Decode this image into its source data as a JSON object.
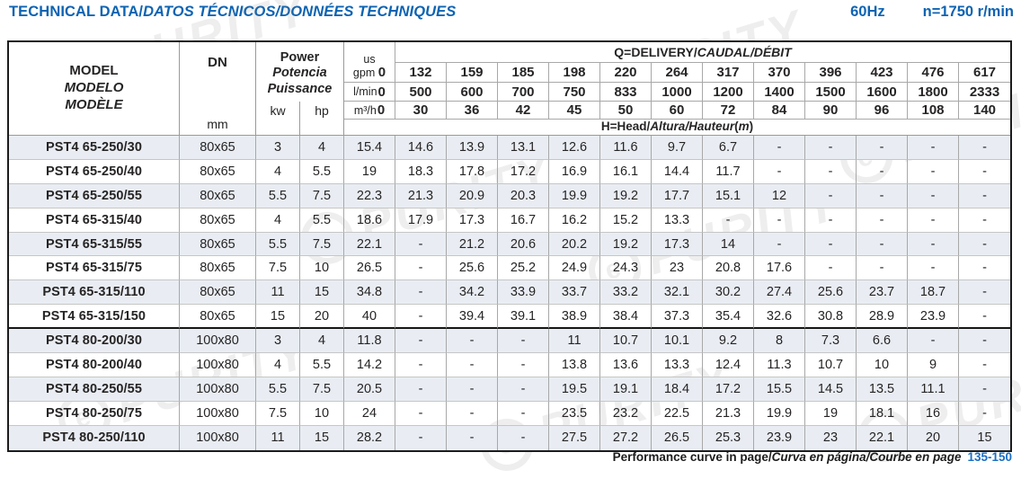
{
  "page": {
    "title_upright": "TECHNICAL DATA/",
    "title_italic": "DATOS TÉCNICOS/DONNÉES TECHNIQUES",
    "frequency": "60Hz",
    "speed": "n=1750 r/min"
  },
  "table": {
    "model_header": {
      "en": "MODEL",
      "es": "MODELO",
      "fr": "MODÈLE"
    },
    "dn_header": {
      "label": "DN",
      "unit": "mm"
    },
    "power_header": {
      "en": "Power",
      "es": "Potencia",
      "fr": "Puissance",
      "kw": "kw",
      "hp": "hp"
    },
    "delivery": {
      "title_bold": "Q=DELIVERY/",
      "title_italic": "CAUDAL/DÉBIT",
      "head_bold": "H=Head/",
      "head_italic": "Altura/Hauteur",
      "head_unit_open": "(",
      "head_unit_m": "m",
      "head_unit_close": ")",
      "unit_rows": [
        {
          "unit_top": "us",
          "unit": "gpm",
          "zero": "0",
          "values": [
            "132",
            "159",
            "185",
            "198",
            "220",
            "264",
            "317",
            "370",
            "396",
            "423",
            "476",
            "617"
          ]
        },
        {
          "unit_top": "",
          "unit": "l/min",
          "zero": "0",
          "values": [
            "500",
            "600",
            "700",
            "750",
            "833",
            "1000",
            "1200",
            "1400",
            "1500",
            "1600",
            "1800",
            "2333"
          ]
        },
        {
          "unit_top": "",
          "unit": "m³/h",
          "zero": "0",
          "values": [
            "30",
            "36",
            "42",
            "45",
            "50",
            "60",
            "72",
            "84",
            "90",
            "96",
            "108",
            "140"
          ]
        }
      ]
    },
    "rows": [
      {
        "model": "PST4 65-250/30",
        "dn": "80x65",
        "kw": "3",
        "hp": "4",
        "values": [
          "15.4",
          "14.6",
          "13.9",
          "13.1",
          "12.6",
          "11.6",
          "9.7",
          "6.7",
          "-",
          "-",
          "-",
          "-",
          "-"
        ],
        "section_end": false
      },
      {
        "model": "PST4 65-250/40",
        "dn": "80x65",
        "kw": "4",
        "hp": "5.5",
        "values": [
          "19",
          "18.3",
          "17.8",
          "17.2",
          "16.9",
          "16.1",
          "14.4",
          "11.7",
          "-",
          "-",
          "-",
          "-",
          "-"
        ],
        "section_end": false
      },
      {
        "model": "PST4 65-250/55",
        "dn": "80x65",
        "kw": "5.5",
        "hp": "7.5",
        "values": [
          "22.3",
          "21.3",
          "20.9",
          "20.3",
          "19.9",
          "19.2",
          "17.7",
          "15.1",
          "12",
          "-",
          "-",
          "-",
          "-"
        ],
        "section_end": false
      },
      {
        "model": "PST4 65-315/40",
        "dn": "80x65",
        "kw": "4",
        "hp": "5.5",
        "values": [
          "18.6",
          "17.9",
          "17.3",
          "16.7",
          "16.2",
          "15.2",
          "13.3",
          "-",
          "-",
          "-",
          "-",
          "-",
          "-"
        ],
        "section_end": false
      },
      {
        "model": "PST4 65-315/55",
        "dn": "80x65",
        "kw": "5.5",
        "hp": "7.5",
        "values": [
          "22.1",
          "-",
          "21.2",
          "20.6",
          "20.2",
          "19.2",
          "17.3",
          "14",
          "-",
          "-",
          "-",
          "-",
          "-"
        ],
        "section_end": false
      },
      {
        "model": "PST4 65-315/75",
        "dn": "80x65",
        "kw": "7.5",
        "hp": "10",
        "values": [
          "26.5",
          "-",
          "25.6",
          "25.2",
          "24.9",
          "24.3",
          "23",
          "20.8",
          "17.6",
          "-",
          "-",
          "-",
          "-"
        ],
        "section_end": false
      },
      {
        "model": "PST4 65-315/110",
        "dn": "80x65",
        "kw": "11",
        "hp": "15",
        "values": [
          "34.8",
          "-",
          "34.2",
          "33.9",
          "33.7",
          "33.2",
          "32.1",
          "30.2",
          "27.4",
          "25.6",
          "23.7",
          "18.7",
          "-"
        ],
        "section_end": false
      },
      {
        "model": "PST4 65-315/150",
        "dn": "80x65",
        "kw": "15",
        "hp": "20",
        "values": [
          "40",
          "-",
          "39.4",
          "39.1",
          "38.9",
          "38.4",
          "37.3",
          "35.4",
          "32.6",
          "30.8",
          "28.9",
          "23.9",
          "-"
        ],
        "section_end": true
      },
      {
        "model": "PST4 80-200/30",
        "dn": "100x80",
        "kw": "3",
        "hp": "4",
        "values": [
          "11.8",
          "-",
          "-",
          "-",
          "11",
          "10.7",
          "10.1",
          "9.2",
          "8",
          "7.3",
          "6.6",
          "-",
          "-"
        ],
        "section_end": false
      },
      {
        "model": "PST4 80-200/40",
        "dn": "100x80",
        "kw": "4",
        "hp": "5.5",
        "values": [
          "14.2",
          "-",
          "-",
          "-",
          "13.8",
          "13.6",
          "13.3",
          "12.4",
          "11.3",
          "10.7",
          "10",
          "9",
          "-"
        ],
        "section_end": false
      },
      {
        "model": "PST4 80-250/55",
        "dn": "100x80",
        "kw": "5.5",
        "hp": "7.5",
        "values": [
          "20.5",
          "-",
          "-",
          "-",
          "19.5",
          "19.1",
          "18.4",
          "17.2",
          "15.5",
          "14.5",
          "13.5",
          "11.1",
          "-"
        ],
        "section_end": false
      },
      {
        "model": "PST4 80-250/75",
        "dn": "100x80",
        "kw": "7.5",
        "hp": "10",
        "values": [
          "24",
          "-",
          "-",
          "-",
          "23.5",
          "23.2",
          "22.5",
          "21.3",
          "19.9",
          "19",
          "18.1",
          "16",
          "-"
        ],
        "section_end": false
      },
      {
        "model": "PST4 80-250/110",
        "dn": "100x80",
        "kw": "11",
        "hp": "15",
        "values": [
          "28.2",
          "-",
          "-",
          "-",
          "27.5",
          "27.2",
          "26.5",
          "25.3",
          "23.9",
          "23",
          "22.1",
          "20",
          "15"
        ],
        "section_end": false
      }
    ]
  },
  "footer": {
    "text_bold": "Performance curve in page/",
    "text_italic": "Curva en página/Courbe en page",
    "pages": "135-150"
  },
  "watermark": {
    "logo_letter": "e",
    "text": "PURITY"
  },
  "colors": {
    "accent_blue": "#0d63b2",
    "pages_blue": "#1a6fc4",
    "row_alt": "#e9edf3",
    "grid_line": "#a8a8a8",
    "outer_border": "#1c1c1c"
  }
}
